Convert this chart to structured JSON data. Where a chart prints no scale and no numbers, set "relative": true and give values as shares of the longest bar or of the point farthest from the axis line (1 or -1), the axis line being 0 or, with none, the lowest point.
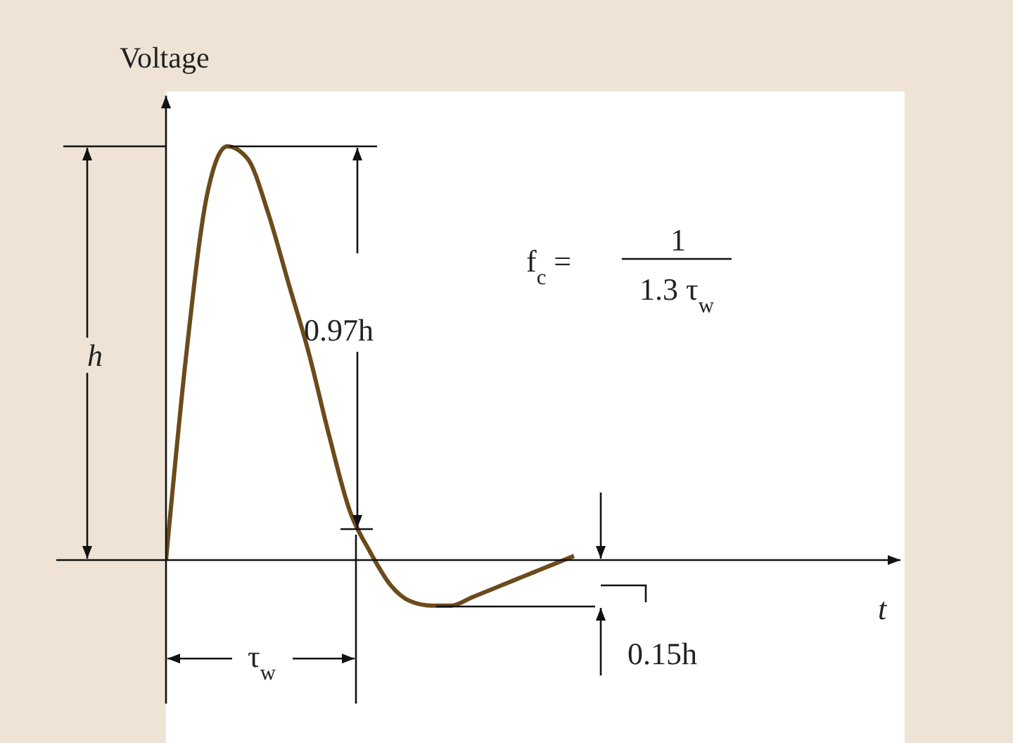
{
  "chart_data": {
    "type": "line",
    "relative": true,
    "ylabel": "Voltage",
    "categories": [
      null,
      null,
      null,
      null,
      null,
      null,
      null,
      null,
      null,
      null,
      null,
      null,
      null,
      null,
      null,
      null,
      null,
      null,
      null,
      null,
      null
    ],
    "series": [
      {
        "color": "#6b4a1c",
        "values": [
          0,
          0.5,
          0.88,
          1,
          0.97,
          0.84,
          0.67,
          0.5,
          0.3,
          0.12,
          0.02,
          -0.06,
          -0.1,
          -0.11,
          -0.11,
          -0.09,
          -0.07,
          -0.05,
          -0.03,
          -0.01,
          0.01
        ]
      }
    ],
    "annotations": [
      "h",
      "0.97h",
      "f$_{c}$ =",
      "1",
      "1.3 τ$_{w}$",
      "τ$_{w}$",
      "0.15h",
      "t"
    ],
    "marker": "none",
    "line_style": "solid"
  }
}
